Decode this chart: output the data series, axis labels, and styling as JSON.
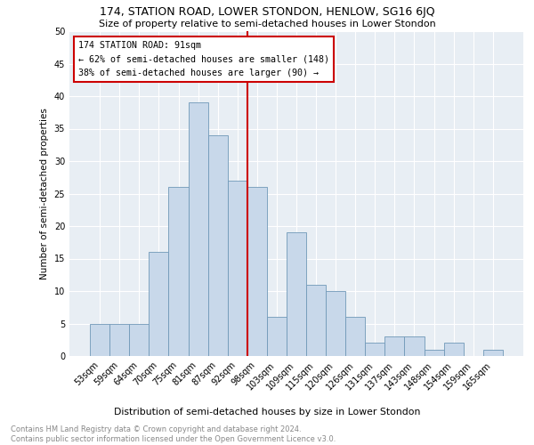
{
  "title": "174, STATION ROAD, LOWER STONDON, HENLOW, SG16 6JQ",
  "subtitle": "Size of property relative to semi-detached houses in Lower Stondon",
  "xlabel": "Distribution of semi-detached houses by size in Lower Stondon",
  "ylabel": "Number of semi-detached properties",
  "footnote": "Contains HM Land Registry data © Crown copyright and database right 2024.\nContains public sector information licensed under the Open Government Licence v3.0.",
  "annotation_title": "174 STATION ROAD: 91sqm",
  "annotation_line1": "← 62% of semi-detached houses are smaller (148)",
  "annotation_line2": "38% of semi-detached houses are larger (90) →",
  "categories": [
    "53sqm",
    "59sqm",
    "64sqm",
    "70sqm",
    "75sqm",
    "81sqm",
    "87sqm",
    "92sqm",
    "98sqm",
    "103sqm",
    "109sqm",
    "115sqm",
    "120sqm",
    "126sqm",
    "131sqm",
    "137sqm",
    "143sqm",
    "148sqm",
    "154sqm",
    "159sqm",
    "165sqm"
  ],
  "values": [
    5,
    5,
    5,
    16,
    26,
    39,
    34,
    27,
    26,
    6,
    19,
    11,
    10,
    6,
    2,
    3,
    3,
    1,
    2,
    0,
    1
  ],
  "bar_color": "#c8d8ea",
  "bar_edge_color": "#7098b8",
  "vline_color": "#cc0000",
  "vline_x": 7.5,
  "annotation_box_color": "#cc0000",
  "background_color": "#e8eef4",
  "ylim": [
    0,
    50
  ],
  "yticks": [
    0,
    5,
    10,
    15,
    20,
    25,
    30,
    35,
    40,
    45,
    50
  ]
}
